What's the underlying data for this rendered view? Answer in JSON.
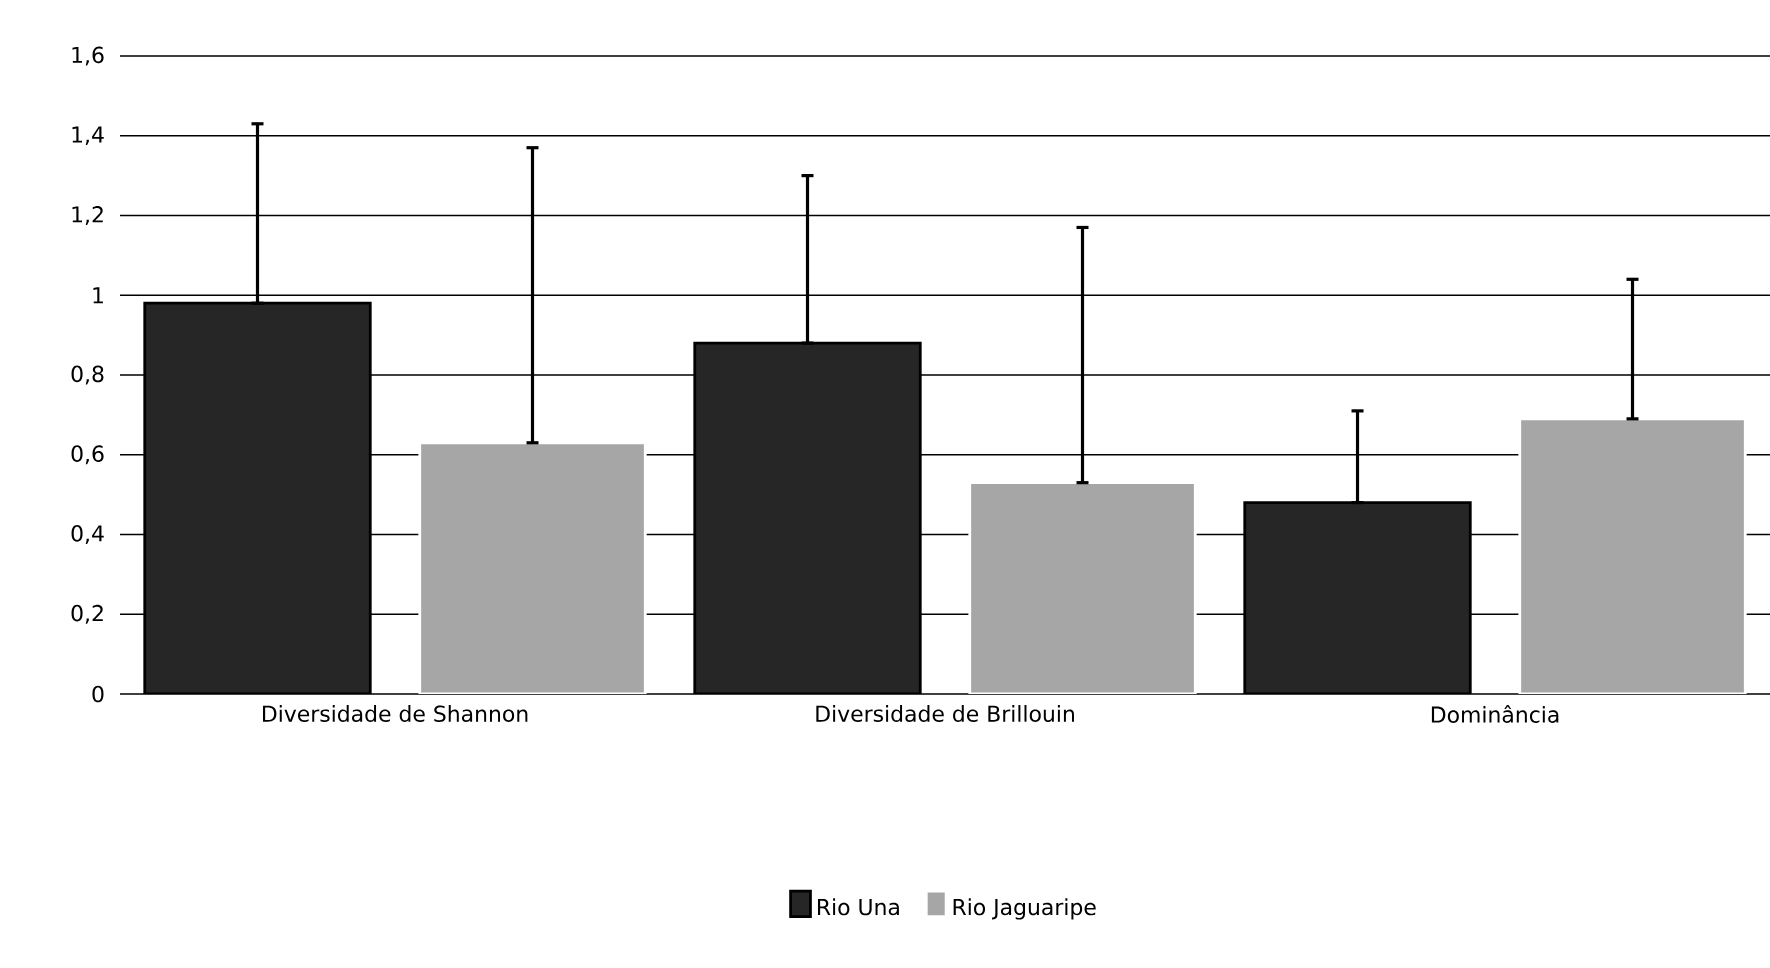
{
  "chart_data": {
    "type": "bar",
    "categories": [
      "Diversidade de Shannon",
      "Diversidade de Brillouin",
      "Dominância"
    ],
    "series": [
      {
        "name": "Rio Una",
        "color": "#262626",
        "values": [
          0.98,
          0.88,
          0.48
        ],
        "errors": [
          [
            0.98,
            1.43
          ],
          [
            0.88,
            1.3
          ],
          [
            0.48,
            0.71
          ]
        ]
      },
      {
        "name": "Rio Jaguaripe",
        "color": "#a6a6a6",
        "values": [
          0.63,
          0.53,
          0.69
        ],
        "errors": [
          [
            0.63,
            1.37
          ],
          [
            0.53,
            1.17
          ],
          [
            0.69,
            1.04
          ]
        ]
      }
    ],
    "ylim": [
      0,
      1.6
    ],
    "yticks": [
      0,
      {
        "value": 0.2,
        "label": "0,2"
      },
      {
        "value": 0.4,
        "label": "0,4"
      },
      {
        "value": 0.6,
        "label": "0,6"
      },
      {
        "value": 0.8,
        "label": "0,8"
      },
      1,
      {
        "value": 1.2,
        "label": "1,2"
      },
      {
        "value": 1.4,
        "label": "1,4"
      },
      {
        "value": 1.6,
        "label": "1,6"
      }
    ],
    "grid": "y",
    "legend": "bottom"
  }
}
